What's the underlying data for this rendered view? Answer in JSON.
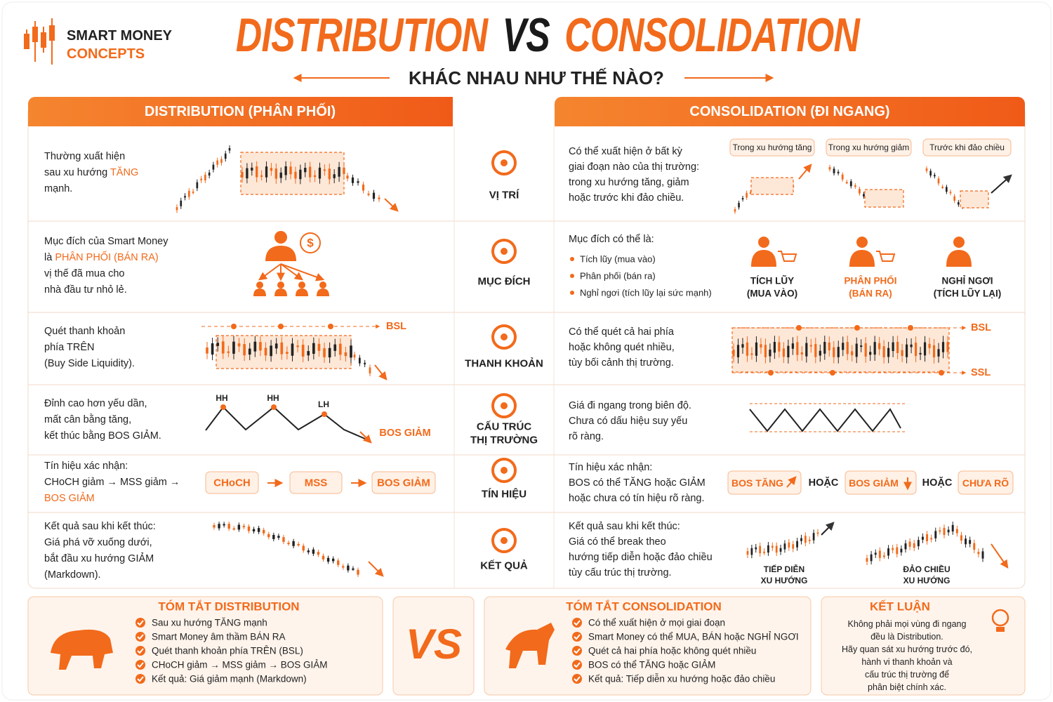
{
  "logo": {
    "line1": "SMART MONEY",
    "line2": "CONCEPTS"
  },
  "title": {
    "left": "DISTRIBUTION",
    "vs": "VS",
    "right": "CONSOLIDATION"
  },
  "subtitle": "KHÁC NHAU NHƯ THẾ NÀO?",
  "headers": {
    "distribution": "DISTRIBUTION (PHÂN PHỐI)",
    "consolidation": "CONSOLIDATION (ĐI NGANG)"
  },
  "rows": [
    {
      "label": [
        "VỊ TRÍ"
      ],
      "left": [
        [
          "Thường xuất hiện"
        ],
        [
          "sau xu hướng ",
          "TĂNG"
        ],
        [
          "mạnh."
        ]
      ],
      "right": [
        "Có thể xuất hiện ở bất kỳ",
        "giai đoạn nào của thị trường:",
        "trong xu hướng tăng, giảm",
        "hoặc trước khi đảo chiều."
      ],
      "tags": [
        "Trong xu hướng tăng",
        "Trong xu hướng giảm",
        "Trước khi đảo chiều"
      ]
    },
    {
      "label": [
        "MỤC ĐÍCH"
      ],
      "left": [
        [
          "Mục đích của Smart Money"
        ],
        [
          "là ",
          "PHÂN PHỐI (BÁN RA)"
        ],
        [
          "vị thế đã mua cho"
        ],
        [
          "nhà đầu tư nhỏ lẻ."
        ]
      ],
      "left_icon": "$",
      "right": [
        "Mục đích có thể là:"
      ],
      "bullets": [
        "Tích lũy (mua vào)",
        "Phân phối (bán ra)",
        "Nghỉ ngơi (tích lũy lại sức mạnh)"
      ],
      "roles": [
        {
          "line1": "TÍCH LŨY",
          "line2": "(MUA VÀO)"
        },
        {
          "line1": "PHÂN PHỐI",
          "line2": "(BÁN RA)"
        },
        {
          "line1": "NGHỈ NGƠI",
          "line2": "(TÍCH LŨY LẠI)"
        }
      ]
    },
    {
      "label": [
        "THANH KHOẢN"
      ],
      "left": [
        [
          "Quét thanh khoản"
        ],
        [
          "phía TRÊN"
        ],
        [
          "(Buy Side Liquidity)."
        ]
      ],
      "left_level": "BSL",
      "right": [
        "Có thể quét cả hai phía",
        "hoặc không quét nhiều,",
        "tùy bối cảnh thị trường."
      ],
      "right_levels": [
        "BSL",
        "SSL"
      ]
    },
    {
      "label": [
        "CẤU TRÚC",
        "THỊ TRƯỜNG"
      ],
      "left": [
        [
          "Đỉnh cao hơn yếu dần,"
        ],
        [
          "mất cân bằng tăng,"
        ],
        [
          "kết thúc bằng BOS GIẢM."
        ]
      ],
      "swings": [
        "HH",
        "HH",
        "LH"
      ],
      "break": "BOS GIẢM",
      "right": [
        "Giá đi ngang trong biên độ.",
        "Chưa có dấu hiệu suy yếu",
        "rõ ràng."
      ]
    },
    {
      "label": [
        "TÍN HIỆU"
      ],
      "left": [
        [
          "Tín hiệu xác nhận:"
        ],
        [
          "CHoCH giảm → MSS giảm →"
        ],
        [
          "BOS GIẢM"
        ]
      ],
      "flow": [
        "CHoCH",
        "MSS",
        "BOS GIẢM"
      ],
      "right": [
        "Tín hiệu xác nhận:",
        "BOS có thể TĂNG hoặc GIẢM",
        "hoặc chưa có tín hiệu rõ ràng."
      ],
      "options": [
        "BOS TĂNG",
        "BOS GIẢM",
        "CHƯA RÕ"
      ],
      "or": [
        "HOẶC",
        "HOẶC"
      ]
    },
    {
      "label": [
        "KẾT QUẢ"
      ],
      "left": [
        [
          "Kết quả sau khi kết thúc:"
        ],
        [
          "Giá phá vỡ xuống dưới,"
        ],
        [
          "bắt đầu xu hướng GIẢM"
        ],
        [
          "(Markdown)."
        ]
      ],
      "right": [
        "Kết quả sau khi kết thúc:",
        "Giá có thể break theo",
        "hướng tiếp diễn hoặc đảo chiều",
        "tùy cấu trúc thị trường."
      ],
      "outcomes": [
        {
          "line1": "TIẾP DIỄN",
          "line2": "XU HƯỚNG"
        },
        {
          "line1": "ĐẢO CHIỀU",
          "line2": "XU HƯỚNG"
        }
      ]
    }
  ],
  "summary_distribution": {
    "title": "TÓM TẮT DISTRIBUTION",
    "items": [
      "Sau xu hướng TĂNG mạnh",
      "Smart Money âm thầm BÁN RA",
      "Quét thanh khoản phía TRÊN (BSL)",
      "CHoCH giảm → MSS giảm → BOS GIẢM",
      "Kết quả: Giá giảm mạnh (Markdown)"
    ]
  },
  "vs": "VS",
  "summary_consolidation": {
    "title": "TÓM TẮT CONSOLIDATION",
    "items": [
      "Có thể xuất hiện ở mọi giai đoạn",
      "Smart Money có thể MUA, BÁN hoặc NGHỈ NGƠI",
      "Quét cả hai phía hoặc không quét nhiều",
      "BOS có thể TĂNG hoặc GIẢM",
      "Kết quả: Tiếp diễn xu hướng hoặc đảo chiều"
    ]
  },
  "conclusion": {
    "title": "KẾT LUẬN",
    "lines": [
      "Không phải mọi vùng đi ngang",
      "đều là Distribution.",
      "Hãy quan sát xu hướng trước đó,",
      "hành vi thanh khoản và",
      "cấu trúc thị trường để",
      "phân biệt chính xác."
    ]
  }
}
